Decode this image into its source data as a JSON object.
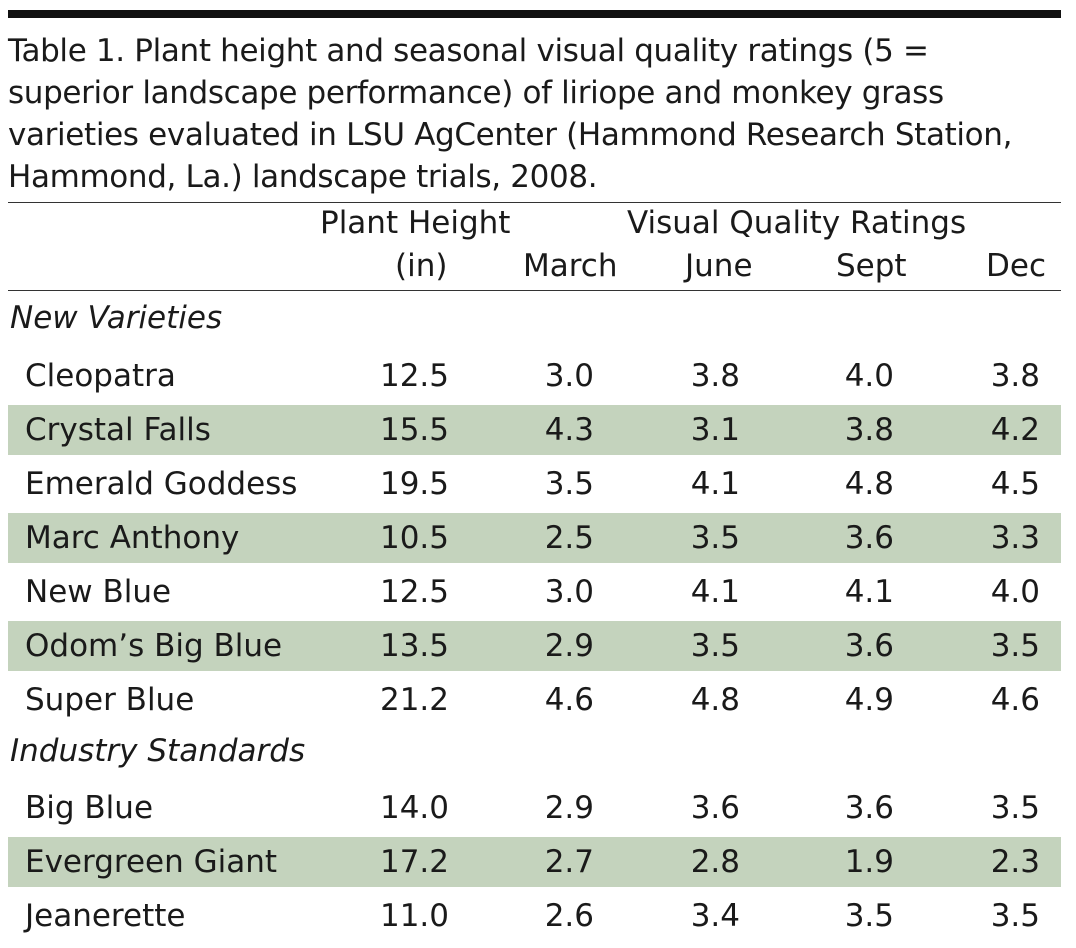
{
  "caption": [
    "Table 1. Plant height and seasonal visual quality ratings (5 =",
    "superior landscape performance) of liriope and monkey grass",
    "varieties evaluated in LSU AgCenter (Hammond Research Station,",
    "Hammond, La.) landscape trials, 2008."
  ],
  "header": {
    "plant_height": "Plant Height",
    "plant_height_unit": "(in)",
    "visual_quality": "Visual Quality Ratings",
    "months": [
      "March",
      "June",
      "Sept",
      "Dec"
    ]
  },
  "groups": [
    {
      "label": "New Varieties",
      "rows": [
        {
          "name": "Cleopatra",
          "height": "12.5",
          "march": "3.0",
          "june": "3.8",
          "sept": "4.0",
          "dec": "3.8",
          "shaded": false
        },
        {
          "name": "Crystal Falls",
          "height": "15.5",
          "march": "4.3",
          "june": "3.1",
          "sept": "3.8",
          "dec": "4.2",
          "shaded": true
        },
        {
          "name": "Emerald Goddess",
          "height": "19.5",
          "march": "3.5",
          "june": "4.1",
          "sept": "4.8",
          "dec": "4.5",
          "shaded": false
        },
        {
          "name": "Marc Anthony",
          "height": "10.5",
          "march": "2.5",
          "june": "3.5",
          "sept": "3.6",
          "dec": "3.3",
          "shaded": true
        },
        {
          "name": "New Blue",
          "height": "12.5",
          "march": "3.0",
          "june": "4.1",
          "sept": "4.1",
          "dec": "4.0",
          "shaded": false
        },
        {
          "name": "Odom’s Big Blue",
          "height": "13.5",
          "march": "2.9",
          "june": "3.5",
          "sept": "3.6",
          "dec": "3.5",
          "shaded": true
        },
        {
          "name": "Super Blue",
          "height": "21.2",
          "march": "4.6",
          "june": "4.8",
          "sept": "4.9",
          "dec": "4.6",
          "shaded": false
        }
      ]
    },
    {
      "label": "Industry Standards",
      "rows": [
        {
          "name": "Big Blue",
          "height": "14.0",
          "march": "2.9",
          "june": "3.6",
          "sept": "3.6",
          "dec": "3.5",
          "shaded": false
        },
        {
          "name": "Evergreen Giant",
          "height": "17.2",
          "march": "2.7",
          "june": "2.8",
          "sept": "1.9",
          "dec": "2.3",
          "shaded": true
        },
        {
          "name": "Jeanerette",
          "height": "11.0",
          "march": "2.6",
          "june": "3.4",
          "sept": "3.5",
          "dec": "3.5",
          "shaded": false
        }
      ]
    }
  ]
}
